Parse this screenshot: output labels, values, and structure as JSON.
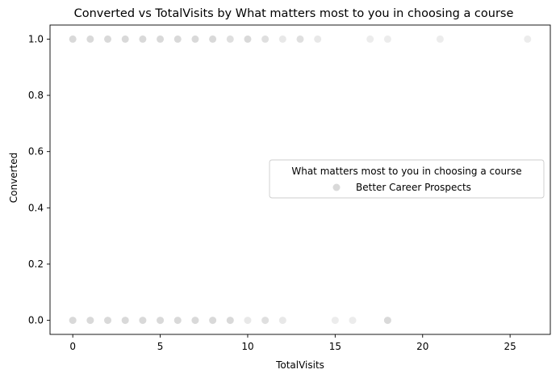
{
  "chart_data": {
    "type": "scatter",
    "title": "Converted vs TotalVisits by What matters most to you in choosing a course",
    "xlabel": "TotalVisits",
    "ylabel": "Converted",
    "xlim": [
      -1.3,
      27.3
    ],
    "ylim": [
      -0.05,
      1.05
    ],
    "xticks": [
      0,
      5,
      10,
      15,
      20,
      25
    ],
    "xtick_labels": [
      "0",
      "5",
      "10",
      "15",
      "20",
      "25"
    ],
    "yticks": [
      0.0,
      0.2,
      0.4,
      0.6,
      0.8,
      1.0
    ],
    "ytick_labels": [
      "0.0",
      "0.2",
      "0.4",
      "0.6",
      "0.8",
      "1.0"
    ],
    "grid": false,
    "legend": {
      "title": "What matters most to you in choosing a course",
      "placement": "center-right",
      "entries": [
        "Better Career Prospects"
      ]
    },
    "series": [
      {
        "name": "Better Career Prospects",
        "color": "#d9d9d9",
        "points": [
          {
            "x": 0,
            "y": 1,
            "alpha": 1.0
          },
          {
            "x": 1,
            "y": 1,
            "alpha": 1.0
          },
          {
            "x": 2,
            "y": 1,
            "alpha": 1.0
          },
          {
            "x": 3,
            "y": 1,
            "alpha": 1.0
          },
          {
            "x": 4,
            "y": 1,
            "alpha": 1.0
          },
          {
            "x": 5,
            "y": 1,
            "alpha": 1.0
          },
          {
            "x": 6,
            "y": 1,
            "alpha": 1.0
          },
          {
            "x": 7,
            "y": 1,
            "alpha": 1.0
          },
          {
            "x": 8,
            "y": 1,
            "alpha": 1.0
          },
          {
            "x": 9,
            "y": 1,
            "alpha": 0.85
          },
          {
            "x": 10,
            "y": 1,
            "alpha": 1.0
          },
          {
            "x": 11,
            "y": 1,
            "alpha": 0.85
          },
          {
            "x": 12,
            "y": 1,
            "alpha": 0.6
          },
          {
            "x": 13,
            "y": 1,
            "alpha": 0.85
          },
          {
            "x": 14,
            "y": 1,
            "alpha": 0.6
          },
          {
            "x": 17,
            "y": 1,
            "alpha": 0.5
          },
          {
            "x": 18,
            "y": 1,
            "alpha": 0.5
          },
          {
            "x": 21,
            "y": 1,
            "alpha": 0.5
          },
          {
            "x": 26,
            "y": 1,
            "alpha": 0.5
          },
          {
            "x": 0,
            "y": 0,
            "alpha": 1.0
          },
          {
            "x": 1,
            "y": 0,
            "alpha": 1.0
          },
          {
            "x": 2,
            "y": 0,
            "alpha": 1.0
          },
          {
            "x": 3,
            "y": 0,
            "alpha": 1.0
          },
          {
            "x": 4,
            "y": 0,
            "alpha": 1.0
          },
          {
            "x": 5,
            "y": 0,
            "alpha": 1.0
          },
          {
            "x": 6,
            "y": 0,
            "alpha": 1.0
          },
          {
            "x": 7,
            "y": 0,
            "alpha": 1.0
          },
          {
            "x": 8,
            "y": 0,
            "alpha": 1.0
          },
          {
            "x": 9,
            "y": 0,
            "alpha": 1.0
          },
          {
            "x": 10,
            "y": 0,
            "alpha": 0.6
          },
          {
            "x": 11,
            "y": 0,
            "alpha": 0.85
          },
          {
            "x": 12,
            "y": 0,
            "alpha": 0.6
          },
          {
            "x": 15,
            "y": 0,
            "alpha": 0.5
          },
          {
            "x": 16,
            "y": 0,
            "alpha": 0.5
          },
          {
            "x": 18,
            "y": 0,
            "alpha": 1.0
          }
        ]
      }
    ]
  }
}
